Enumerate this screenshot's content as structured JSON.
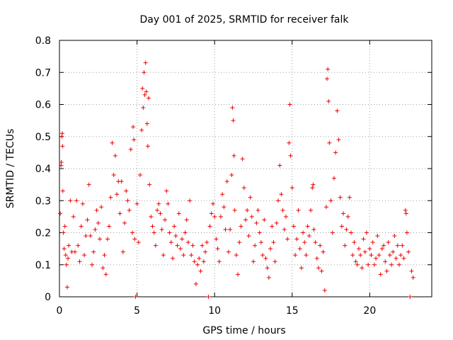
{
  "chart_data": {
    "type": "scatter",
    "title": "Day 001 of 2025, SRMTID for receiver falk",
    "xlabel": "GPS time / hours",
    "ylabel": "SRMTID / TECUs",
    "xlim": [
      0,
      24
    ],
    "ylim": [
      0,
      0.8
    ],
    "x_ticks": [
      0,
      5,
      10,
      15,
      20
    ],
    "y_ticks": [
      0,
      0.1,
      0.2,
      0.3,
      0.4,
      0.5,
      0.6,
      0.7,
      0.8
    ],
    "x_tick_labels": [
      "0",
      "5",
      "10",
      "15",
      "20"
    ],
    "y_tick_labels": [
      "0",
      "0.1",
      "0.2",
      "0.3",
      "0.4",
      "0.5",
      "0.6",
      "0.7",
      "0.8"
    ],
    "grid": true,
    "marker": "+",
    "color": "#ee0000",
    "series": [
      {
        "name": "SRMTID",
        "points": [
          [
            0.05,
            0.26
          ],
          [
            0.1,
            0.41
          ],
          [
            0.12,
            0.42
          ],
          [
            0.15,
            0.5
          ],
          [
            0.18,
            0.51
          ],
          [
            0.2,
            0.47
          ],
          [
            0.22,
            0.33
          ],
          [
            0.25,
            0.2
          ],
          [
            0.3,
            0.15
          ],
          [
            0.35,
            0.22
          ],
          [
            0.4,
            0.13
          ],
          [
            0.45,
            0.1
          ],
          [
            0.5,
            0.03
          ],
          [
            0.55,
            0.12
          ],
          [
            0.6,
            0.16
          ],
          [
            0.7,
            0.3
          ],
          [
            0.8,
            0.14
          ],
          [
            0.9,
            0.25
          ],
          [
            1.0,
            0.14
          ],
          [
            1.1,
            0.3
          ],
          [
            1.2,
            0.16
          ],
          [
            1.3,
            0.11
          ],
          [
            1.4,
            0.22
          ],
          [
            1.5,
            0.29
          ],
          [
            1.6,
            0.13
          ],
          [
            1.7,
            0.19
          ],
          [
            1.8,
            0.24
          ],
          [
            1.9,
            0.35
          ],
          [
            2.0,
            0.19
          ],
          [
            2.1,
            0.1
          ],
          [
            2.2,
            0.14
          ],
          [
            2.3,
            0.21
          ],
          [
            2.4,
            0.27
          ],
          [
            2.5,
            0.23
          ],
          [
            2.6,
            0.18
          ],
          [
            2.7,
            0.28
          ],
          [
            2.8,
            0.09
          ],
          [
            2.9,
            0.13
          ],
          [
            3.0,
            0.07
          ],
          [
            3.1,
            0.18
          ],
          [
            3.2,
            0.22
          ],
          [
            3.3,
            0.31
          ],
          [
            3.4,
            0.48
          ],
          [
            3.5,
            0.38
          ],
          [
            3.6,
            0.44
          ],
          [
            3.7,
            0.32
          ],
          [
            3.8,
            0.36
          ],
          [
            3.9,
            0.26
          ],
          [
            4.0,
            0.36
          ],
          [
            4.1,
            0.14
          ],
          [
            4.2,
            0.23
          ],
          [
            4.3,
            0.33
          ],
          [
            4.4,
            0.3
          ],
          [
            4.5,
            0.27
          ],
          [
            4.6,
            0.46
          ],
          [
            4.7,
            0.2
          ],
          [
            4.75,
            0.53
          ],
          [
            4.8,
            0.49
          ],
          [
            4.85,
            0.18
          ],
          [
            4.9,
            0.0
          ],
          [
            5.0,
            0.29
          ],
          [
            5.1,
            0.17
          ],
          [
            5.2,
            0.38
          ],
          [
            5.3,
            0.52
          ],
          [
            5.35,
            0.65
          ],
          [
            5.4,
            0.59
          ],
          [
            5.45,
            0.7
          ],
          [
            5.5,
            0.63
          ],
          [
            5.55,
            0.73
          ],
          [
            5.6,
            0.64
          ],
          [
            5.65,
            0.54
          ],
          [
            5.7,
            0.47
          ],
          [
            5.75,
            0.62
          ],
          [
            5.8,
            0.35
          ],
          [
            5.9,
            0.25
          ],
          [
            6.0,
            0.22
          ],
          [
            6.1,
            0.2
          ],
          [
            6.2,
            0.16
          ],
          [
            6.3,
            0.27
          ],
          [
            6.4,
            0.29
          ],
          [
            6.5,
            0.26
          ],
          [
            6.6,
            0.21
          ],
          [
            6.7,
            0.13
          ],
          [
            6.8,
            0.24
          ],
          [
            6.9,
            0.33
          ],
          [
            7.0,
            0.29
          ],
          [
            7.1,
            0.2
          ],
          [
            7.2,
            0.17
          ],
          [
            7.3,
            0.12
          ],
          [
            7.4,
            0.22
          ],
          [
            7.5,
            0.19
          ],
          [
            7.6,
            0.16
          ],
          [
            7.7,
            0.26
          ],
          [
            7.8,
            0.15
          ],
          [
            7.9,
            0.18
          ],
          [
            8.0,
            0.13
          ],
          [
            8.1,
            0.2
          ],
          [
            8.2,
            0.24
          ],
          [
            8.3,
            0.17
          ],
          [
            8.4,
            0.3
          ],
          [
            8.5,
            0.13
          ],
          [
            8.6,
            0.16
          ],
          [
            8.7,
            0.11
          ],
          [
            8.8,
            0.04
          ],
          [
            8.9,
            0.1
          ],
          [
            9.0,
            0.12
          ],
          [
            9.1,
            0.08
          ],
          [
            9.2,
            0.16
          ],
          [
            9.3,
            0.11
          ],
          [
            9.4,
            0.14
          ],
          [
            9.5,
            0.17
          ],
          [
            9.6,
            0.0
          ],
          [
            9.7,
            0.22
          ],
          [
            9.8,
            0.26
          ],
          [
            9.9,
            0.29
          ],
          [
            10.0,
            0.25
          ],
          [
            10.1,
            0.18
          ],
          [
            10.2,
            0.15
          ],
          [
            10.3,
            0.11
          ],
          [
            10.4,
            0.25
          ],
          [
            10.5,
            0.32
          ],
          [
            10.6,
            0.28
          ],
          [
            10.7,
            0.21
          ],
          [
            10.8,
            0.36
          ],
          [
            10.9,
            0.14
          ],
          [
            11.0,
            0.21
          ],
          [
            11.1,
            0.38
          ],
          [
            11.15,
            0.59
          ],
          [
            11.2,
            0.55
          ],
          [
            11.25,
            0.44
          ],
          [
            11.3,
            0.27
          ],
          [
            11.4,
            0.13
          ],
          [
            11.5,
            0.07
          ],
          [
            11.6,
            0.17
          ],
          [
            11.7,
            0.22
          ],
          [
            11.8,
            0.43
          ],
          [
            11.9,
            0.34
          ],
          [
            12.0,
            0.24
          ],
          [
            12.1,
            0.27
          ],
          [
            12.2,
            0.19
          ],
          [
            12.3,
            0.31
          ],
          [
            12.4,
            0.25
          ],
          [
            12.5,
            0.11
          ],
          [
            12.6,
            0.16
          ],
          [
            12.7,
            0.23
          ],
          [
            12.8,
            0.27
          ],
          [
            12.9,
            0.2
          ],
          [
            13.0,
            0.17
          ],
          [
            13.1,
            0.13
          ],
          [
            13.2,
            0.24
          ],
          [
            13.3,
            0.12
          ],
          [
            13.4,
            0.09
          ],
          [
            13.5,
            0.06
          ],
          [
            13.6,
            0.15
          ],
          [
            13.7,
            0.22
          ],
          [
            13.8,
            0.17
          ],
          [
            13.9,
            0.11
          ],
          [
            14.0,
            0.23
          ],
          [
            14.1,
            0.3
          ],
          [
            14.2,
            0.41
          ],
          [
            14.3,
            0.32
          ],
          [
            14.4,
            0.27
          ],
          [
            14.5,
            0.21
          ],
          [
            14.6,
            0.25
          ],
          [
            14.7,
            0.18
          ],
          [
            14.8,
            0.48
          ],
          [
            14.85,
            0.6
          ],
          [
            14.9,
            0.44
          ],
          [
            15.0,
            0.34
          ],
          [
            15.1,
            0.22
          ],
          [
            15.2,
            0.13
          ],
          [
            15.3,
            0.18
          ],
          [
            15.4,
            0.27
          ],
          [
            15.5,
            0.15
          ],
          [
            15.6,
            0.09
          ],
          [
            15.7,
            0.2
          ],
          [
            15.8,
            0.17
          ],
          [
            15.9,
            0.13
          ],
          [
            16.0,
            0.22
          ],
          [
            16.1,
            0.19
          ],
          [
            16.2,
            0.27
          ],
          [
            16.3,
            0.34
          ],
          [
            16.35,
            0.35
          ],
          [
            16.4,
            0.21
          ],
          [
            16.5,
            0.17
          ],
          [
            16.6,
            0.12
          ],
          [
            16.7,
            0.09
          ],
          [
            16.8,
            0.16
          ],
          [
            16.9,
            0.08
          ],
          [
            17.0,
            0.14
          ],
          [
            17.1,
            0.02
          ],
          [
            17.2,
            0.28
          ],
          [
            17.25,
            0.68
          ],
          [
            17.3,
            0.71
          ],
          [
            17.35,
            0.61
          ],
          [
            17.4,
            0.48
          ],
          [
            17.5,
            0.3
          ],
          [
            17.6,
            0.2
          ],
          [
            17.7,
            0.37
          ],
          [
            17.8,
            0.45
          ],
          [
            17.9,
            0.58
          ],
          [
            18.0,
            0.49
          ],
          [
            18.1,
            0.31
          ],
          [
            18.2,
            0.22
          ],
          [
            18.3,
            0.26
          ],
          [
            18.4,
            0.16
          ],
          [
            18.5,
            0.21
          ],
          [
            18.6,
            0.25
          ],
          [
            18.7,
            0.31
          ],
          [
            18.8,
            0.2
          ],
          [
            18.9,
            0.13
          ],
          [
            19.0,
            0.17
          ],
          [
            19.1,
            0.11
          ],
          [
            19.2,
            0.1
          ],
          [
            19.3,
            0.15
          ],
          [
            19.4,
            0.13
          ],
          [
            19.5,
            0.09
          ],
          [
            19.6,
            0.18
          ],
          [
            19.7,
            0.14
          ],
          [
            19.8,
            0.2
          ],
          [
            19.9,
            0.1
          ],
          [
            20.0,
            0.15
          ],
          [
            20.1,
            0.13
          ],
          [
            20.2,
            0.17
          ],
          [
            20.3,
            0.1
          ],
          [
            20.4,
            0.12
          ],
          [
            20.5,
            0.19
          ],
          [
            20.6,
            0.13
          ],
          [
            20.7,
            0.07
          ],
          [
            20.8,
            0.15
          ],
          [
            20.9,
            0.16
          ],
          [
            21.0,
            0.11
          ],
          [
            21.1,
            0.08
          ],
          [
            21.2,
            0.17
          ],
          [
            21.3,
            0.13
          ],
          [
            21.4,
            0.1
          ],
          [
            21.5,
            0.14
          ],
          [
            21.6,
            0.19
          ],
          [
            21.7,
            0.12
          ],
          [
            21.8,
            0.16
          ],
          [
            21.9,
            0.1
          ],
          [
            22.0,
            0.13
          ],
          [
            22.1,
            0.16
          ],
          [
            22.2,
            0.12
          ],
          [
            22.3,
            0.27
          ],
          [
            22.35,
            0.26
          ],
          [
            22.4,
            0.2
          ],
          [
            22.5,
            0.14
          ],
          [
            22.6,
            0.0
          ],
          [
            22.7,
            0.08
          ],
          [
            22.8,
            0.06
          ]
        ]
      }
    ]
  }
}
